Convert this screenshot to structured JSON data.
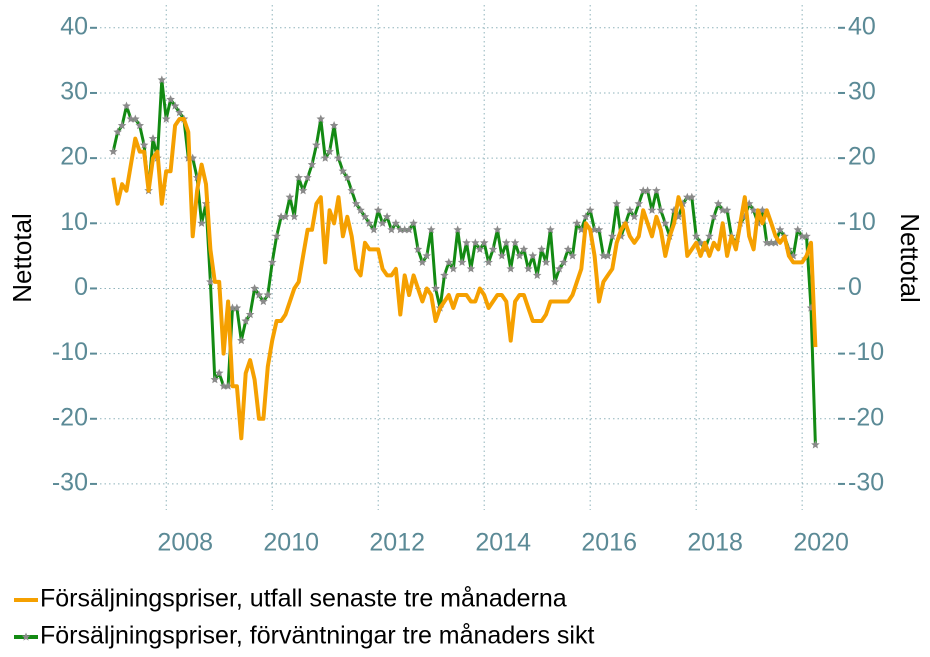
{
  "chart_data": {
    "type": "line",
    "y_label": "Nettotal",
    "y2_label": "Nettotal",
    "xlim": [
      2006.75,
      2020.62
    ],
    "xticks": [
      2008,
      2010,
      2012,
      2014,
      2016,
      2018,
      2020
    ],
    "ylim": [
      -34,
      43.5
    ],
    "yticks": [
      -30,
      -20,
      -10,
      0,
      10,
      20,
      30,
      40
    ],
    "y2lim": [
      -34,
      43.5
    ],
    "y2ticks": [
      -30,
      -20,
      -10,
      0,
      10,
      20,
      30,
      40
    ],
    "grid": true,
    "legend": "bottom",
    "x": [
      2007,
      2007.083,
      2007.167,
      2007.25,
      2007.333,
      2007.417,
      2007.5,
      2007.583,
      2007.667,
      2007.75,
      2007.833,
      2007.917,
      2008,
      2008.083,
      2008.167,
      2008.25,
      2008.333,
      2008.417,
      2008.5,
      2008.583,
      2008.667,
      2008.75,
      2008.833,
      2008.917,
      2009,
      2009.083,
      2009.167,
      2009.25,
      2009.333,
      2009.417,
      2009.5,
      2009.583,
      2009.667,
      2009.75,
      2009.833,
      2009.917,
      2010,
      2010.083,
      2010.167,
      2010.25,
      2010.333,
      2010.417,
      2010.5,
      2010.583,
      2010.667,
      2010.75,
      2010.833,
      2010.917,
      2011,
      2011.083,
      2011.167,
      2011.25,
      2011.333,
      2011.417,
      2011.5,
      2011.583,
      2011.667,
      2011.75,
      2011.833,
      2011.917,
      2012,
      2012.083,
      2012.167,
      2012.25,
      2012.333,
      2012.417,
      2012.5,
      2012.583,
      2012.667,
      2012.75,
      2012.833,
      2012.917,
      2013,
      2013.083,
      2013.167,
      2013.25,
      2013.333,
      2013.417,
      2013.5,
      2013.583,
      2013.667,
      2013.75,
      2013.833,
      2013.917,
      2014,
      2014.083,
      2014.167,
      2014.25,
      2014.333,
      2014.417,
      2014.5,
      2014.583,
      2014.667,
      2014.75,
      2014.833,
      2014.917,
      2015,
      2015.083,
      2015.167,
      2015.25,
      2015.333,
      2015.417,
      2015.5,
      2015.583,
      2015.667,
      2015.75,
      2015.833,
      2015.917,
      2016,
      2016.083,
      2016.167,
      2016.25,
      2016.333,
      2016.417,
      2016.5,
      2016.583,
      2016.667,
      2016.75,
      2016.833,
      2016.917,
      2017,
      2017.083,
      2017.167,
      2017.25,
      2017.333,
      2017.417,
      2017.5,
      2017.583,
      2017.667,
      2017.75,
      2017.833,
      2017.917,
      2018,
      2018.083,
      2018.167,
      2018.25,
      2018.333,
      2018.417,
      2018.5,
      2018.583,
      2018.667,
      2018.75,
      2018.833,
      2018.917,
      2019,
      2019.083,
      2019.167,
      2019.25,
      2019.333,
      2019.417,
      2019.5,
      2019.583,
      2019.667,
      2019.75,
      2019.833,
      2019.917,
      2020,
      2020.083,
      2020.167,
      2020.25
    ],
    "series": [
      {
        "name": "Försäljningspriser, utfall senaste tre månaderna",
        "color": "#f5a000",
        "marker": false,
        "values": [
          17,
          13,
          16,
          15,
          19,
          23,
          21,
          21,
          15,
          20,
          21,
          13,
          18,
          18,
          25,
          26,
          26,
          24,
          8,
          15,
          19,
          16,
          6,
          1,
          1,
          -10,
          -2,
          -15,
          -15,
          -23,
          -13,
          -11,
          -14,
          -20,
          -20,
          -12,
          -8,
          -5,
          -5,
          -4,
          -2,
          0,
          1,
          5,
          9,
          9,
          13,
          14,
          4,
          12,
          10,
          14,
          8,
          11,
          8,
          3,
          2,
          7,
          6,
          6,
          6,
          3,
          2,
          2,
          3,
          -4,
          2,
          -1,
          2,
          0,
          -2,
          0,
          -1,
          -5,
          -3,
          -2,
          -1,
          -3,
          -1,
          -1,
          -1,
          -2,
          -2,
          0,
          -1,
          -3,
          -2,
          -1,
          -1,
          -2,
          -8,
          -2,
          -1,
          -1,
          -3,
          -5,
          -5,
          -5,
          -4,
          -2,
          -2,
          -2,
          -2,
          -2,
          -1,
          1,
          3,
          10,
          9,
          5,
          -2,
          1,
          2,
          3,
          7,
          9,
          10,
          8,
          7,
          8,
          12,
          10,
          8,
          11,
          9,
          5,
          8,
          10,
          14,
          12,
          5,
          6,
          7,
          5,
          7,
          5,
          7,
          6,
          10,
          5,
          8,
          6,
          10,
          14,
          8,
          6,
          12,
          10,
          12,
          10,
          8,
          7,
          8,
          5,
          4,
          4,
          4,
          5,
          7,
          -9
        ]
      },
      {
        "name": "Försäljningspriser, förväntningar tre månaders sikt",
        "color": "#138a13",
        "marker": true,
        "marker_color": "#8a8a8a",
        "values": [
          21,
          24,
          25,
          28,
          26,
          26,
          25,
          22,
          15,
          23,
          20,
          32,
          26,
          29,
          28,
          27,
          26,
          20,
          20,
          17,
          10,
          13,
          1,
          -14,
          -13,
          -15,
          -15,
          -3,
          -3,
          -8,
          -5,
          -4,
          0,
          -1,
          -2,
          -1,
          4,
          8,
          11,
          11,
          14,
          11,
          17,
          15,
          17,
          19,
          22,
          26,
          20,
          21,
          25,
          20,
          18,
          17,
          15,
          13,
          12,
          11,
          10,
          9,
          12,
          10,
          11,
          9,
          10,
          9,
          9,
          9,
          10,
          6,
          4,
          5,
          9,
          0,
          -3,
          2,
          4,
          3,
          9,
          4,
          7,
          3,
          7,
          6,
          7,
          4,
          6,
          9,
          5,
          7,
          3,
          7,
          5,
          6,
          3,
          5,
          2,
          6,
          4,
          9,
          1,
          3,
          4,
          6,
          5,
          10,
          9,
          11,
          12,
          9,
          9,
          5,
          5,
          8,
          13,
          8,
          10,
          12,
          11,
          13,
          15,
          15,
          12,
          15,
          12,
          10,
          8,
          12,
          11,
          13,
          14,
          14,
          8,
          7,
          6,
          8,
          11,
          13,
          12,
          12,
          8,
          7,
          10,
          11,
          13,
          12,
          10,
          12,
          7,
          7,
          7,
          9,
          8,
          6,
          5,
          9,
          8,
          8,
          -3,
          -24
        ]
      }
    ]
  }
}
